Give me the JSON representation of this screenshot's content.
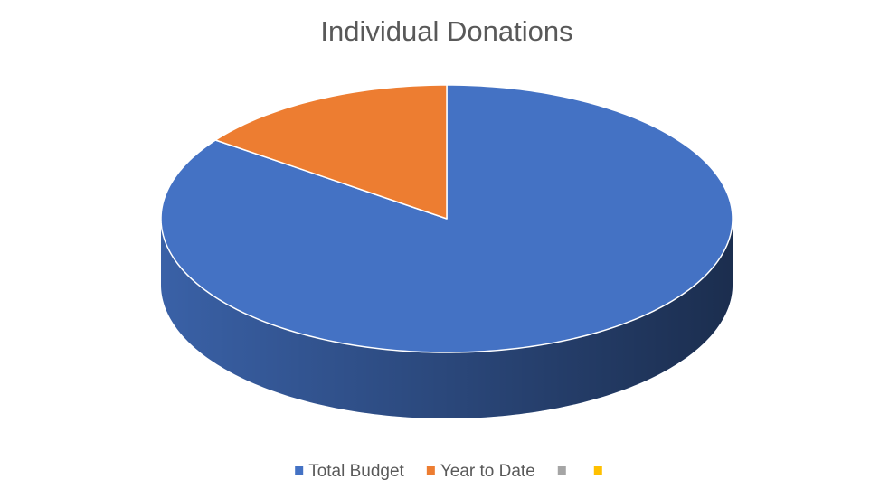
{
  "chart_data": {
    "type": "pie",
    "title": "Individual Donations",
    "categories": [
      "Total Budget",
      "Year to Date",
      null,
      null
    ],
    "values": [
      85,
      15,
      0,
      0
    ],
    "colors": [
      "#4472c4",
      "#ed7d31",
      "#a5a5a5",
      "#ffc000"
    ]
  }
}
